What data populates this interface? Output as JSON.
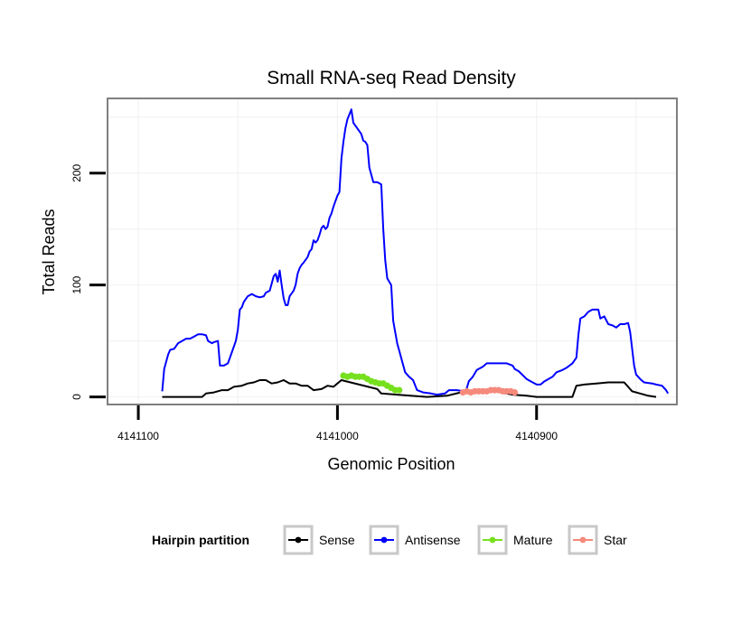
{
  "chart_data": {
    "type": "line",
    "title": "Small RNA-seq Read Density",
    "xlabel": "Genomic Position",
    "ylabel": "Total Reads",
    "xlim": [
      4141115,
      4140830
    ],
    "ylim": [
      -6,
      266
    ],
    "x_reversed": true,
    "x_ticks": [
      {
        "value": 4141100,
        "label": "4141100"
      },
      {
        "value": 4141000,
        "label": "4141000"
      },
      {
        "value": 4140900,
        "label": "4140900"
      }
    ],
    "y_ticks": [
      {
        "value": 0,
        "label": "0"
      },
      {
        "value": 100,
        "label": "100"
      },
      {
        "value": 200,
        "label": "200"
      }
    ],
    "legend": {
      "title": "Hairpin partition",
      "position": "bottom",
      "entries": [
        "Sense",
        "Antisense",
        "Mature",
        "Star"
      ]
    },
    "series": [
      {
        "name": "Sense",
        "color": "#000000",
        "style": "line",
        "points": [
          [
            4141088,
            0
          ],
          [
            4141076,
            0
          ],
          [
            4141068,
            0
          ],
          [
            4141066,
            3
          ],
          [
            4141062,
            4
          ],
          [
            4141058,
            6
          ],
          [
            4141055,
            6
          ],
          [
            4141052,
            9
          ],
          [
            4141048,
            10
          ],
          [
            4141045,
            12
          ],
          [
            4141042,
            13
          ],
          [
            4141039,
            15
          ],
          [
            4141036,
            15
          ],
          [
            4141033,
            12
          ],
          [
            4141030,
            13
          ],
          [
            4141027,
            15
          ],
          [
            4141024,
            12
          ],
          [
            4141021,
            12
          ],
          [
            4141018,
            10
          ],
          [
            4141015,
            10
          ],
          [
            4141012,
            6
          ],
          [
            4141008,
            7
          ],
          [
            4141005,
            10
          ],
          [
            4141002,
            9
          ],
          [
            4141000,
            12
          ],
          [
            4140998,
            15
          ],
          [
            4140980,
            7
          ],
          [
            4140978,
            3
          ],
          [
            4140970,
            2
          ],
          [
            4140955,
            0
          ],
          [
            4140945,
            1
          ],
          [
            4140938,
            4
          ],
          [
            4140932,
            5
          ],
          [
            4140926,
            6
          ],
          [
            4140918,
            4
          ],
          [
            4140912,
            2
          ],
          [
            4140905,
            1
          ],
          [
            4140900,
            0
          ],
          [
            4140890,
            0
          ],
          [
            4140882,
            0
          ],
          [
            4140880,
            10
          ],
          [
            4140876,
            11
          ],
          [
            4140870,
            12
          ],
          [
            4140864,
            13
          ],
          [
            4140856,
            13
          ],
          [
            4140852,
            5
          ],
          [
            4140848,
            3
          ],
          [
            4140844,
            1
          ],
          [
            4140840,
            0
          ]
        ]
      },
      {
        "name": "Antisense",
        "color": "#0000ff",
        "style": "line",
        "points": [
          [
            4141088,
            5
          ],
          [
            4141087,
            25
          ],
          [
            4141085,
            38
          ],
          [
            4141084,
            42
          ],
          [
            4141082,
            43
          ],
          [
            4141080,
            48
          ],
          [
            4141078,
            50
          ],
          [
            4141076,
            52
          ],
          [
            4141074,
            52
          ],
          [
            4141072,
            54
          ],
          [
            4141070,
            56
          ],
          [
            4141068,
            56
          ],
          [
            4141066,
            55
          ],
          [
            4141065,
            50
          ],
          [
            4141063,
            48
          ],
          [
            4141062,
            49
          ],
          [
            4141060,
            50
          ],
          [
            4141059,
            28
          ],
          [
            4141057,
            28
          ],
          [
            4141055,
            30
          ],
          [
            4141053,
            40
          ],
          [
            4141051,
            50
          ],
          [
            4141050,
            60
          ],
          [
            4141049,
            78
          ],
          [
            4141048,
            80
          ],
          [
            4141047,
            85
          ],
          [
            4141045,
            90
          ],
          [
            4141043,
            92
          ],
          [
            4141041,
            90
          ],
          [
            4141039,
            89
          ],
          [
            4141037,
            90
          ],
          [
            4141036,
            93
          ],
          [
            4141034,
            95
          ],
          [
            4141032,
            108
          ],
          [
            4141031,
            110
          ],
          [
            4141030,
            103
          ],
          [
            4141029,
            113
          ],
          [
            4141028,
            100
          ],
          [
            4141027,
            88
          ],
          [
            4141026,
            82
          ],
          [
            4141025,
            82
          ],
          [
            4141024,
            90
          ],
          [
            4141022,
            95
          ],
          [
            4141021,
            100
          ],
          [
            4141020,
            110
          ],
          [
            4141019,
            115
          ],
          [
            4141018,
            118
          ],
          [
            4141017,
            120
          ],
          [
            4141015,
            125
          ],
          [
            4141014,
            130
          ],
          [
            4141013,
            132
          ],
          [
            4141012,
            140
          ],
          [
            4141011,
            138
          ],
          [
            4141010,
            140
          ],
          [
            4141009,
            145
          ],
          [
            4141008,
            151
          ],
          [
            4141007,
            153
          ],
          [
            4141006,
            150
          ],
          [
            4141005,
            152
          ],
          [
            4141004,
            160
          ],
          [
            4141003,
            164
          ],
          [
            4141002,
            170
          ],
          [
            4141001,
            175
          ],
          [
            4141000,
            180
          ],
          [
            4140999,
            183
          ],
          [
            4140998,
            213
          ],
          [
            4140997,
            228
          ],
          [
            4140996,
            240
          ],
          [
            4140995,
            248
          ],
          [
            4140993,
            257
          ],
          [
            4140992,
            245
          ],
          [
            4140990,
            240
          ],
          [
            4140988,
            235
          ],
          [
            4140987,
            229
          ],
          [
            4140986,
            228
          ],
          [
            4140985,
            225
          ],
          [
            4140984,
            205
          ],
          [
            4140982,
            192
          ],
          [
            4140980,
            192
          ],
          [
            4140978,
            190
          ],
          [
            4140977,
            150
          ],
          [
            4140976,
            122
          ],
          [
            4140975,
            106
          ],
          [
            4140973,
            100
          ],
          [
            4140972,
            68
          ],
          [
            4140970,
            48
          ],
          [
            4140968,
            35
          ],
          [
            4140966,
            22
          ],
          [
            4140964,
            18
          ],
          [
            4140962,
            15
          ],
          [
            4140960,
            6
          ],
          [
            4140957,
            4
          ],
          [
            4140953,
            3
          ],
          [
            4140950,
            2
          ],
          [
            4140946,
            3
          ],
          [
            4140944,
            6
          ],
          [
            4140940,
            6
          ],
          [
            4140936,
            5
          ],
          [
            4140935,
            8
          ],
          [
            4140934,
            14
          ],
          [
            4140932,
            18
          ],
          [
            4140930,
            24
          ],
          [
            4140927,
            27
          ],
          [
            4140925,
            30
          ],
          [
            4140920,
            30
          ],
          [
            4140915,
            30
          ],
          [
            4140912,
            28
          ],
          [
            4140911,
            25
          ],
          [
            4140909,
            23
          ],
          [
            4140905,
            16
          ],
          [
            4140903,
            14
          ],
          [
            4140900,
            11
          ],
          [
            4140898,
            11
          ],
          [
            4140896,
            14
          ],
          [
            4140892,
            18
          ],
          [
            4140890,
            22
          ],
          [
            4140887,
            24
          ],
          [
            4140885,
            26
          ],
          [
            4140882,
            30
          ],
          [
            4140880,
            35
          ],
          [
            4140879,
            55
          ],
          [
            4140878,
            70
          ],
          [
            4140876,
            72
          ],
          [
            4140874,
            76
          ],
          [
            4140872,
            78
          ],
          [
            4140869,
            78
          ],
          [
            4140868,
            70
          ],
          [
            4140866,
            72
          ],
          [
            4140864,
            65
          ],
          [
            4140862,
            64
          ],
          [
            4140860,
            62
          ],
          [
            4140858,
            65
          ],
          [
            4140856,
            65
          ],
          [
            4140854,
            66
          ],
          [
            4140853,
            58
          ],
          [
            4140851,
            28
          ],
          [
            4140850,
            20
          ],
          [
            4140848,
            16
          ],
          [
            4140846,
            13
          ],
          [
            4140842,
            12
          ],
          [
            4140840,
            11
          ],
          [
            4140837,
            10
          ],
          [
            4140835,
            6
          ],
          [
            4140834,
            3
          ]
        ]
      },
      {
        "name": "Mature",
        "color": "#77e01e",
        "style": "dots",
        "points": [
          [
            4140997,
            19
          ],
          [
            4140995,
            18
          ],
          [
            4140993,
            19
          ],
          [
            4140991,
            18
          ],
          [
            4140989,
            18
          ],
          [
            4140987,
            18
          ],
          [
            4140985,
            16
          ],
          [
            4140983,
            14
          ],
          [
            4140981,
            13
          ],
          [
            4140979,
            12
          ],
          [
            4140977,
            12
          ],
          [
            4140975,
            10
          ],
          [
            4140973,
            8
          ],
          [
            4140971,
            6
          ],
          [
            4140969,
            6
          ]
        ]
      },
      {
        "name": "Star",
        "color": "#f58a7c",
        "style": "dots",
        "points": [
          [
            4140937,
            4
          ],
          [
            4140935,
            5
          ],
          [
            4140933,
            4
          ],
          [
            4140931,
            5
          ],
          [
            4140929,
            5
          ],
          [
            4140927,
            5
          ],
          [
            4140925,
            5
          ],
          [
            4140923,
            6
          ],
          [
            4140921,
            6
          ],
          [
            4140919,
            6
          ],
          [
            4140917,
            5
          ],
          [
            4140915,
            5
          ],
          [
            4140913,
            5
          ],
          [
            4140911,
            4
          ]
        ]
      }
    ]
  }
}
